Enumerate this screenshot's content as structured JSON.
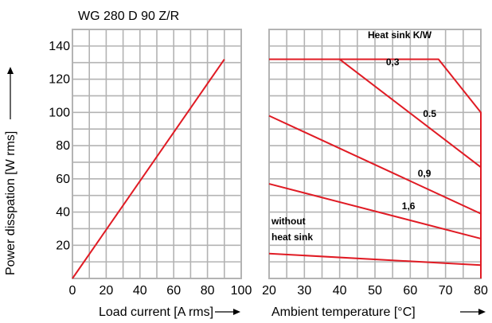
{
  "chart_data": {
    "title": "WG 280 D 90 Z/R",
    "ylabel": "Power disspation [W rms]",
    "ylim": [
      0,
      150
    ],
    "yticks": [
      20,
      40,
      60,
      80,
      100,
      120,
      140
    ],
    "grid": true,
    "left_panel": {
      "type": "line",
      "xlabel": "Load current [A rms]",
      "xlim": [
        0,
        100
      ],
      "xticks": [
        0,
        20,
        40,
        60,
        80,
        100
      ],
      "series": [
        {
          "x": [
            0,
            90
          ],
          "y": [
            0,
            132
          ]
        }
      ]
    },
    "right_panel": {
      "type": "line",
      "xlabel": "Ambient temperature [°C]",
      "xlim": [
        20,
        80
      ],
      "xticks": [
        20,
        30,
        40,
        50,
        60,
        70,
        80
      ],
      "legend_title": "Heat sink K/W",
      "series": [
        {
          "name": "0,3",
          "x": [
            20,
            68,
            80,
            80
          ],
          "y": [
            132,
            132,
            100,
            0
          ]
        },
        {
          "name": "0.5",
          "x": [
            40,
            80
          ],
          "y": [
            132,
            67
          ]
        },
        {
          "name": "0,9",
          "x": [
            20,
            80
          ],
          "y": [
            98,
            39
          ]
        },
        {
          "name": "1,6",
          "x": [
            20,
            80
          ],
          "y": [
            57,
            24
          ]
        },
        {
          "name": "without heat sink",
          "x": [
            20,
            80
          ],
          "y": [
            15,
            8
          ]
        }
      ],
      "annotations": [
        "Heat sink K/W",
        "0,3",
        "0.5",
        "0,9",
        "1,6",
        "without",
        "heat sink"
      ]
    },
    "colors": {
      "curve": "#e01b24",
      "grid": "#b3b3b3"
    }
  }
}
